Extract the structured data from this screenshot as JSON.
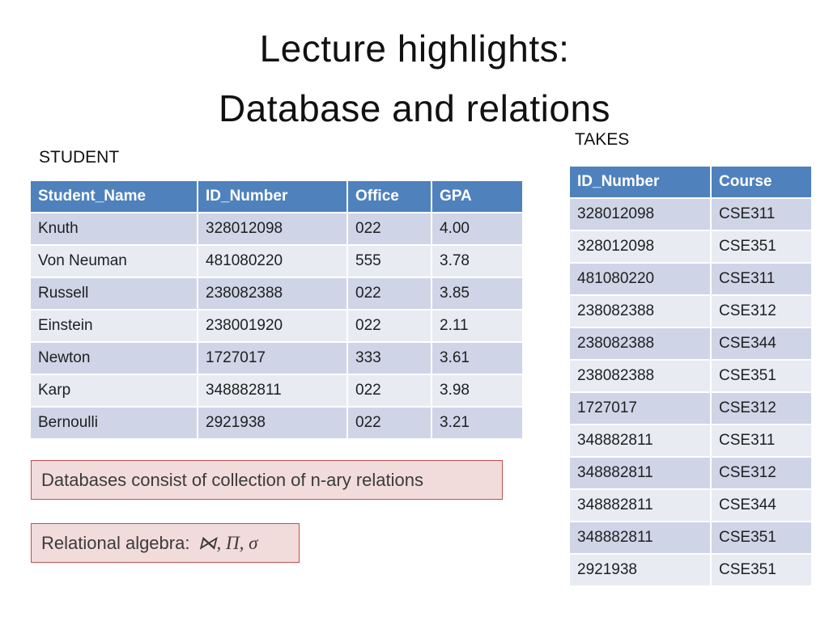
{
  "title": {
    "line1": "Lecture highlights:",
    "line2": "Database and relations"
  },
  "student_table": {
    "label": "STUDENT",
    "headers": [
      "Student_Name",
      "ID_Number",
      "Office",
      "GPA"
    ],
    "rows": [
      [
        "Knuth",
        "328012098",
        "022",
        "4.00"
      ],
      [
        "Von Neuman",
        "481080220",
        "555",
        "3.78"
      ],
      [
        "Russell",
        "238082388",
        "022",
        "3.85"
      ],
      [
        "Einstein",
        "238001920",
        "022",
        "2.11"
      ],
      [
        "Newton",
        "1727017",
        "333",
        "3.61"
      ],
      [
        "Karp",
        "348882811",
        "022",
        "3.98"
      ],
      [
        "Bernoulli",
        "2921938",
        "022",
        "3.21"
      ]
    ]
  },
  "takes_table": {
    "label": "TAKES",
    "headers": [
      "ID_Number",
      "Course"
    ],
    "rows": [
      [
        "328012098",
        "CSE311"
      ],
      [
        "328012098",
        "CSE351"
      ],
      [
        "481080220",
        "CSE311"
      ],
      [
        "238082388",
        "CSE312"
      ],
      [
        "238082388",
        "CSE344"
      ],
      [
        "238082388",
        "CSE351"
      ],
      [
        "1727017",
        "CSE312"
      ],
      [
        "348882811",
        "CSE311"
      ],
      [
        "348882811",
        "CSE312"
      ],
      [
        "348882811",
        "CSE344"
      ],
      [
        "348882811",
        "CSE351"
      ],
      [
        "2921938",
        "CSE351"
      ]
    ]
  },
  "callouts": {
    "box1_text": "Databases consist of collection of n-ary relations",
    "box2_prefix": "Relational algebra:",
    "box2_symbols": "⋈, Π, σ"
  },
  "colors": {
    "header_bg": "#4f81bd",
    "row_odd": "#cfd5e7",
    "row_even": "#e9ebf3",
    "callout_bg": "#f2dcdb",
    "callout_border": "#c0504d"
  }
}
